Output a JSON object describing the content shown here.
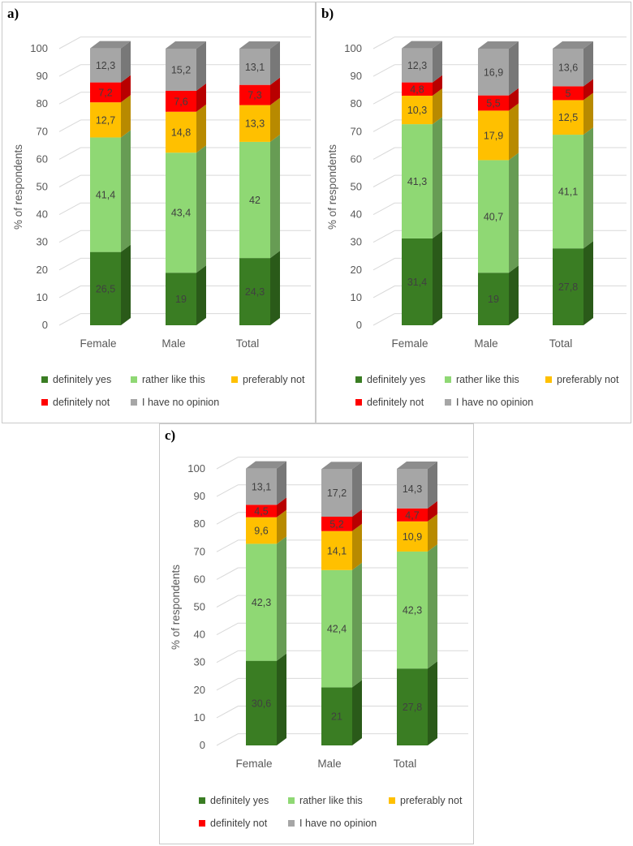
{
  "colors": {
    "definitely_yes": "#3a7d23",
    "rather_like_this": "#8fd874",
    "preferably_not": "#ffc000",
    "definitely_not": "#ff0000",
    "no_opinion": "#a6a6a6"
  },
  "legend": {
    "items": [
      {
        "label": "definitely yes",
        "color": "#3a7d23"
      },
      {
        "label": "rather like this",
        "color": "#8fd874"
      },
      {
        "label": "preferably not",
        "color": "#ffc000"
      },
      {
        "label": "definitely not",
        "color": "#ff0000"
      },
      {
        "label": "I have no opinion",
        "color": "#a6a6a6"
      }
    ]
  },
  "chart_data": [
    {
      "panel_label": "a)",
      "type": "bar",
      "stacked": true,
      "ylabel": "% of respondents",
      "ylim": [
        0,
        100
      ],
      "yticks": [
        0,
        10,
        20,
        30,
        40,
        50,
        60,
        70,
        80,
        90,
        100
      ],
      "grid": true,
      "legend_position": "bottom",
      "categories": [
        "Female",
        "Male",
        "Total"
      ],
      "series": [
        {
          "name": "definitely yes",
          "values": [
            26.5,
            19,
            24.3
          ],
          "labels": [
            "26,5",
            "19",
            "24,3"
          ]
        },
        {
          "name": "rather like this",
          "values": [
            41.4,
            43.4,
            42
          ],
          "labels": [
            "41,4",
            "43,4",
            "42"
          ]
        },
        {
          "name": "preferably not",
          "values": [
            12.7,
            14.8,
            13.3
          ],
          "labels": [
            "12,7",
            "14,8",
            "13,3"
          ]
        },
        {
          "name": "definitely not",
          "values": [
            7.2,
            7.6,
            7.3
          ],
          "labels": [
            "7,2",
            "7,6",
            "7,3"
          ]
        },
        {
          "name": "I have no opinion",
          "values": [
            12.3,
            15.2,
            13.1
          ],
          "labels": [
            "12,3",
            "15,2",
            "13,1"
          ]
        }
      ]
    },
    {
      "panel_label": "b)",
      "type": "bar",
      "stacked": true,
      "ylabel": "% of respondents",
      "ylim": [
        0,
        100
      ],
      "yticks": [
        0,
        10,
        20,
        30,
        40,
        50,
        60,
        70,
        80,
        90,
        100
      ],
      "grid": true,
      "legend_position": "bottom",
      "categories": [
        "Female",
        "Male",
        "Total"
      ],
      "series": [
        {
          "name": "definitely yes",
          "values": [
            31.4,
            19,
            27.8
          ],
          "labels": [
            "31,4",
            "19",
            "27,8"
          ]
        },
        {
          "name": "rather like this",
          "values": [
            41.3,
            40.7,
            41.1
          ],
          "labels": [
            "41,3",
            "40,7",
            "41,1"
          ]
        },
        {
          "name": "preferably not",
          "values": [
            10.3,
            17.9,
            12.5
          ],
          "labels": [
            "10,3",
            "17,9",
            "12,5"
          ]
        },
        {
          "name": "definitely not",
          "values": [
            4.8,
            5.5,
            5
          ],
          "labels": [
            "4,8",
            "5,5",
            "5"
          ]
        },
        {
          "name": "I have no opinion",
          "values": [
            12.3,
            16.9,
            13.6
          ],
          "labels": [
            "12,3",
            "16,9",
            "13,6"
          ]
        }
      ]
    },
    {
      "panel_label": "c)",
      "type": "bar",
      "stacked": true,
      "ylabel": "% of respondents",
      "ylim": [
        0,
        100
      ],
      "yticks": [
        0,
        10,
        20,
        30,
        40,
        50,
        60,
        70,
        80,
        90,
        100
      ],
      "grid": true,
      "legend_position": "bottom",
      "categories": [
        "Female",
        "Male",
        "Total"
      ],
      "series": [
        {
          "name": "definitely yes",
          "values": [
            30.6,
            21,
            27.8
          ],
          "labels": [
            "30,6",
            "21",
            "27,8"
          ]
        },
        {
          "name": "rather like this",
          "values": [
            42.3,
            42.4,
            42.3
          ],
          "labels": [
            "42,3",
            "42,4",
            "42,3"
          ]
        },
        {
          "name": "preferably not",
          "values": [
            9.6,
            14.1,
            10.9
          ],
          "labels": [
            "9,6",
            "14,1",
            "10,9"
          ]
        },
        {
          "name": "definitely not",
          "values": [
            4.5,
            5.2,
            4.7
          ],
          "labels": [
            "4,5",
            "5,2",
            "4,7"
          ]
        },
        {
          "name": "I have no opinion",
          "values": [
            13.1,
            17.2,
            14.3
          ],
          "labels": [
            "13,1",
            "17,2",
            "14,3"
          ]
        }
      ]
    }
  ]
}
